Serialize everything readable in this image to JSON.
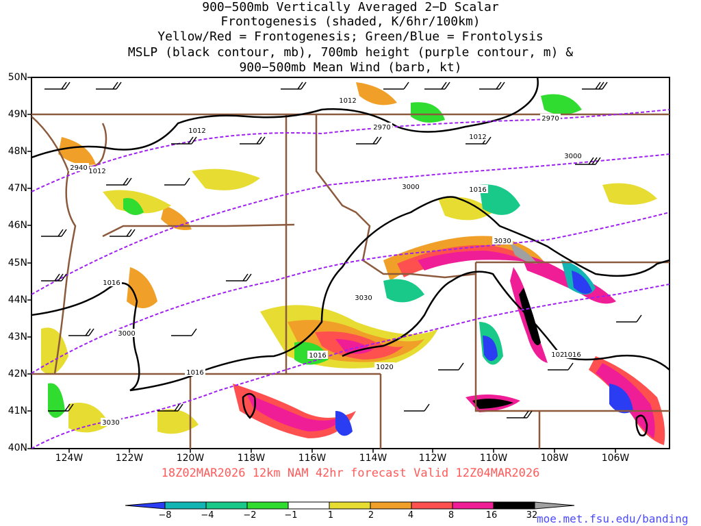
{
  "title_lines": [
    "900−500mb Vertically Averaged 2−D Scalar",
    "Frontogenesis (shaded, K/6hr/100km)",
    "Yellow/Red = Frontogenesis;  Green/Blue = Frontolysis",
    "MSLP (black contour, mb), 700mb height (purple contour, m) &",
    "900−500mb Mean Wind (barb, kt)"
  ],
  "latitude_labels": [
    "50N",
    "49N",
    "48N",
    "47N",
    "46N",
    "45N",
    "44N",
    "43N",
    "42N",
    "41N",
    "40N"
  ],
  "longitude_labels": [
    "124W",
    "122W",
    "120W",
    "118W",
    "116W",
    "114W",
    "112W",
    "110W",
    "108W",
    "106W"
  ],
  "footer": "18Z02MAR2026 12km NAM 42hr forecast Valid 12Z04MAR2026",
  "colorbar": {
    "labels": [
      "−8",
      "−4",
      "−2",
      "−1",
      "1",
      "2",
      "4",
      "8",
      "16",
      "32"
    ],
    "colors": [
      "#2b3df2",
      "#12b4b4",
      "#19c98a",
      "#2fdc2f",
      "#ffffff",
      "#e6dc32",
      "#f0a028",
      "#ff5050",
      "#f01e96",
      "#000000",
      "#a0a0a0"
    ]
  },
  "mslp_labels": [
    "1012",
    "1012",
    "1012",
    "1016",
    "1016",
    "1016",
    "1016",
    "1020",
    "1020",
    "1016",
    "1012"
  ],
  "height_labels": [
    "2970",
    "2970",
    "2940",
    "3000",
    "3000",
    "3000",
    "3030",
    "3030",
    "3030"
  ],
  "credit": "moe.met.fsu.edu/banding",
  "colors": {
    "mslp_contour": "#000000",
    "height_contour": "#a020f0",
    "borders": "#8b5a3c",
    "footer_text": "#ff5a5a",
    "credit_text": "#4a4aff"
  }
}
